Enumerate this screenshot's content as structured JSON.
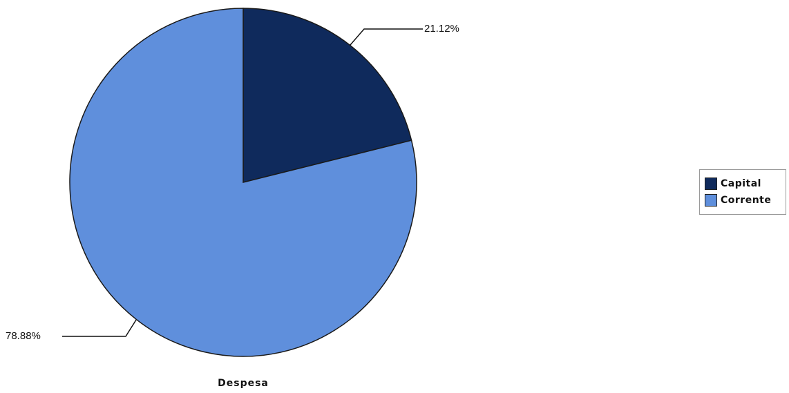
{
  "chart_data": {
    "type": "pie",
    "slices": [
      {
        "label": "Capital",
        "value": 21.12,
        "display": "21.12%",
        "color": "#0f2a5c"
      },
      {
        "label": "Corrente",
        "value": 78.88,
        "display": "78.88%",
        "color": "#5f8fdc"
      }
    ],
    "xlabel": "Despesa",
    "legend": {
      "placement": "right",
      "items": [
        "Capital",
        "Corrente"
      ]
    }
  }
}
